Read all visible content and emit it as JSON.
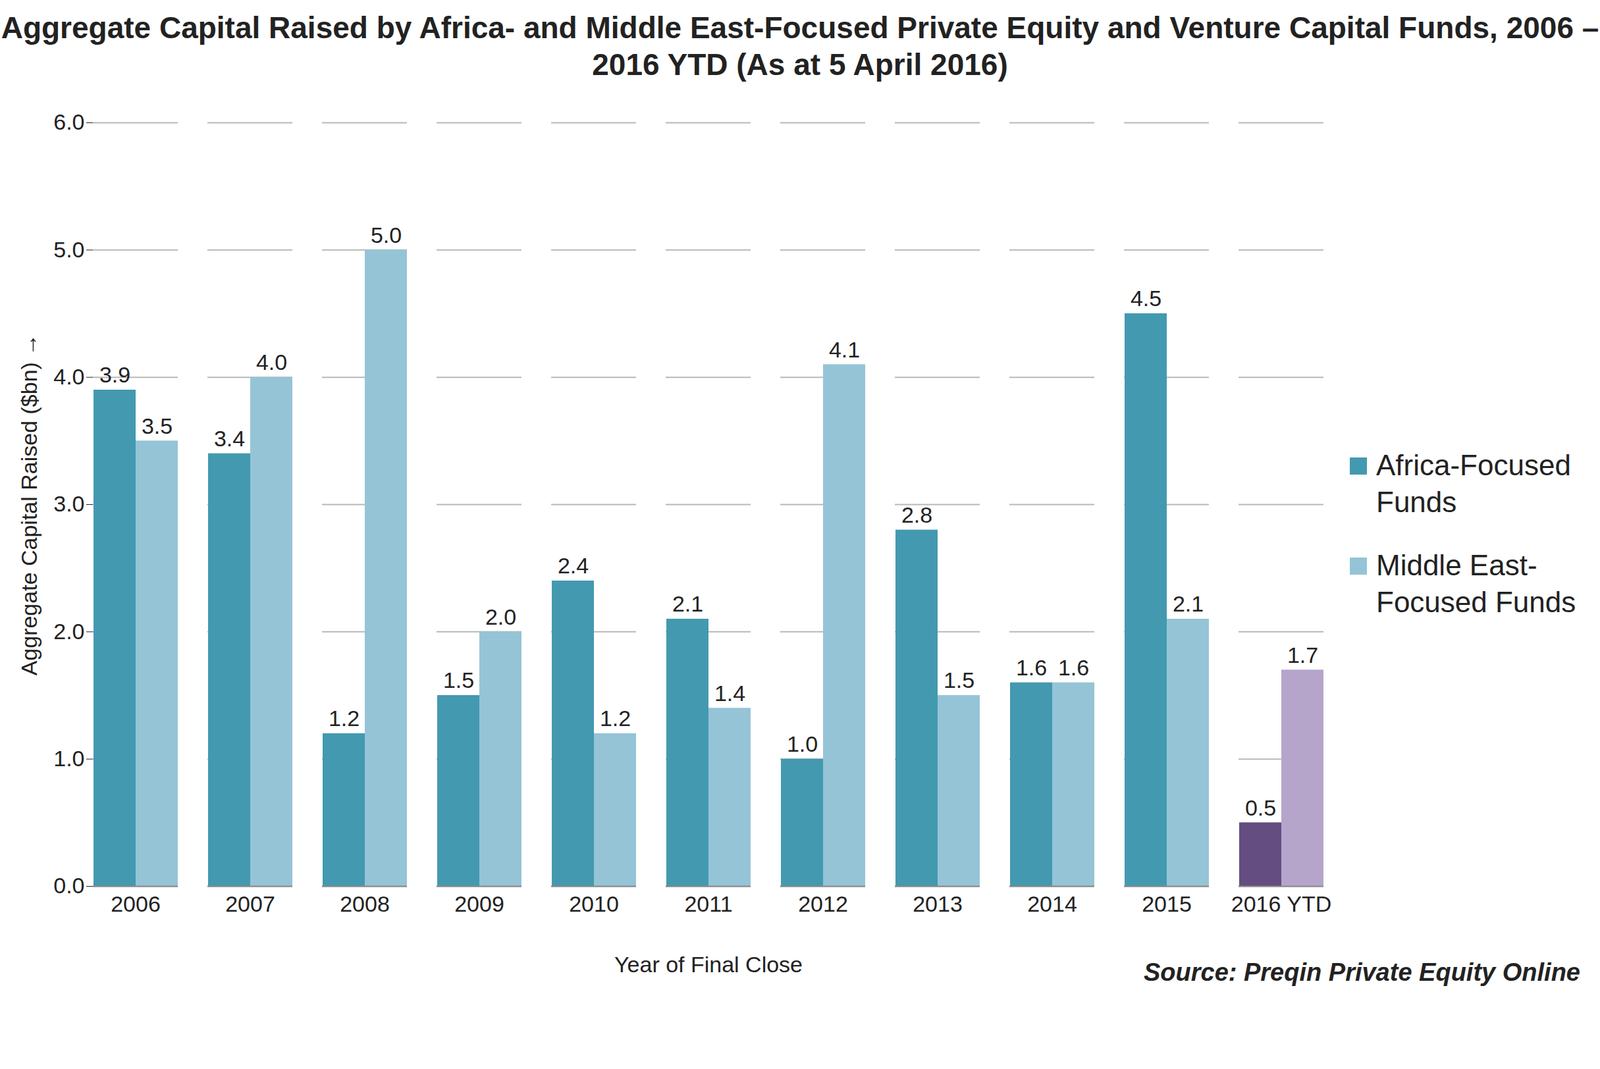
{
  "chart_data": {
    "type": "bar",
    "title": "Aggregate Capital Raised by Africa- and Middle East-Focused Private Equity and Venture Capital Funds, 2006 – 2016 YTD (As at 5 April 2016)",
    "x_label": "Year of Final Close",
    "y_label": "Aggregate Capital Raised ($bn)",
    "source": "Source: Preqin Private Equity Online",
    "categories": [
      "2006",
      "2007",
      "2008",
      "2009",
      "2010",
      "2011",
      "2012",
      "2013",
      "2014",
      "2015",
      "2016 YTD"
    ],
    "series": [
      {
        "name": "Africa-Focused Funds",
        "color": "#4399b0",
        "colors": [
          "#4399b0",
          "#4399b0",
          "#4399b0",
          "#4399b0",
          "#4399b0",
          "#4399b0",
          "#4399b0",
          "#4399b0",
          "#4399b0",
          "#4399b0",
          "#644d80"
        ],
        "values": [
          3.9,
          3.4,
          1.2,
          1.5,
          2.4,
          2.1,
          1.0,
          2.8,
          1.6,
          4.5,
          0.5
        ],
        "value_labels": [
          "3.9",
          "3.4",
          "1.2",
          "1.5",
          "2.4",
          "2.1",
          "1.0",
          "2.8",
          "1.6",
          "4.5",
          "0.5"
        ]
      },
      {
        "name": "Middle East-Focused Funds",
        "color": "#95c4d6",
        "colors": [
          "#95c4d6",
          "#95c4d6",
          "#95c4d6",
          "#95c4d6",
          "#95c4d6",
          "#95c4d6",
          "#95c4d6",
          "#95c4d6",
          "#95c4d6",
          "#95c4d6",
          "#b5a5cb"
        ],
        "values": [
          3.5,
          4.0,
          5.0,
          2.0,
          1.2,
          1.4,
          4.1,
          1.5,
          1.6,
          2.1,
          1.7
        ],
        "value_labels": [
          "3.5",
          "4.0",
          "5.0",
          "2.0",
          "1.2",
          "1.4",
          "4.1",
          "1.5",
          "1.6",
          "2.1",
          "1.7"
        ]
      }
    ],
    "ylim": [
      0,
      6
    ],
    "yticks": [
      0,
      1,
      2,
      3,
      4,
      5,
      6
    ],
    "grid": true,
    "legend": "right",
    "data_labels": true
  }
}
